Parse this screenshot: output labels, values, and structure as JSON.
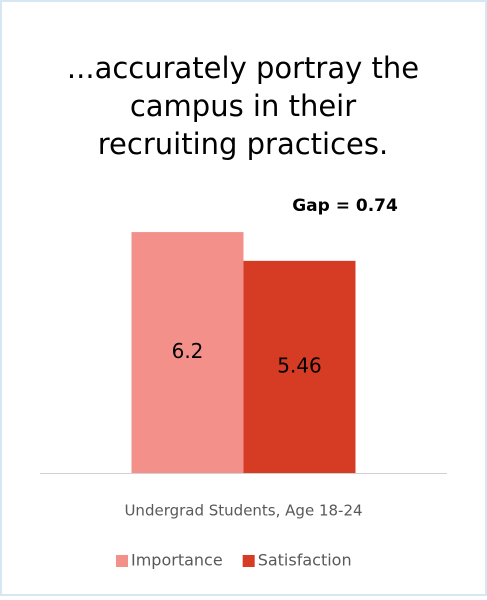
{
  "chart_data": {
    "type": "bar",
    "title": [
      "...accurately portray the",
      "campus in their",
      "recruiting practices."
    ],
    "annotation": "Gap = 0.74",
    "categories": [
      "Undergrad Students, Age 18-24"
    ],
    "series": [
      {
        "name": "Importance",
        "color": "#f4908a",
        "values": [
          6.2
        ]
      },
      {
        "name": "Satisfaction",
        "color": "#d63b24",
        "values": [
          5.46
        ]
      }
    ],
    "ylim": [
      0,
      7
    ],
    "legend": "bottom"
  }
}
